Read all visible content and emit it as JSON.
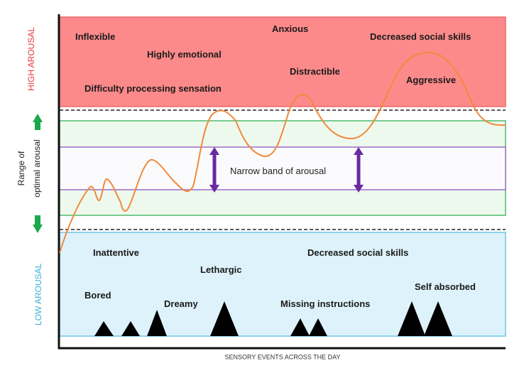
{
  "diagram": {
    "zones": {
      "high": {
        "label": "HIGH AROUSAL",
        "color": "#e8383d",
        "fill": "#fd8a8a"
      },
      "optimal": {
        "label_line1": "Range of",
        "label_line2": "optimal arousal",
        "fill": "#eef9ee",
        "border": "#4cbb6a"
      },
      "narrow": {
        "label": "Narrow band of arousal",
        "border": "#9b6cc9",
        "arrow_color": "#6a2aa0"
      },
      "low": {
        "label": "LOW AROUSAL",
        "color": "#3ab0d8",
        "fill": "#def2fb"
      }
    },
    "high_labels": [
      "Inflexible",
      "Highly emotional",
      "Difficulty processing sensation",
      "Anxious",
      "Distractible",
      "Decreased social skills",
      "Aggressive"
    ],
    "low_labels": [
      "Inattentive",
      "Lethargic",
      "Bored",
      "Dreamy",
      "Decreased social skills",
      "Missing instructions",
      "Self absorbed"
    ],
    "x_axis_label": "SENSORY EVENTS ACROSS THE DAY",
    "curve_color": "#f08a3c",
    "arrow_green": "#1aa84a"
  }
}
